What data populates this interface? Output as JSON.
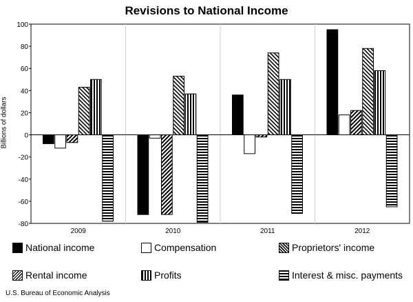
{
  "chart_data": {
    "type": "bar",
    "title": "Revisions to National Income",
    "xlabel": "",
    "ylabel": "Billions of dollars",
    "categories": [
      "2009",
      "2010",
      "2011",
      "2012"
    ],
    "ylim": [
      -80,
      100
    ],
    "yticks": [
      100,
      80,
      60,
      40,
      20,
      0,
      -20,
      -40,
      -60,
      -80
    ],
    "grid": "vertical separators between categories",
    "legend_position": "bottom",
    "series": [
      {
        "name": "National income",
        "pattern": "solid",
        "values": [
          -8,
          -72,
          36,
          95
        ]
      },
      {
        "name": "Compensation",
        "pattern": "white",
        "values": [
          -12,
          -3,
          -17,
          18
        ]
      },
      {
        "name": "Proprietors' income",
        "pattern": "diag-dense",
        "values": [
          -7,
          -72,
          -2,
          22
        ]
      },
      {
        "name": "Rental income",
        "pattern": "diag",
        "values": [
          43,
          53,
          74,
          78
        ]
      },
      {
        "name": "Profits",
        "pattern": "vertical",
        "values": [
          50,
          37,
          50,
          58
        ]
      },
      {
        "name": "Interest & misc. payments",
        "pattern": "horizontal",
        "values": [
          -78,
          -79,
          -71,
          -65
        ]
      }
    ]
  },
  "source": "U.S. Bureau of Economic Analysis"
}
